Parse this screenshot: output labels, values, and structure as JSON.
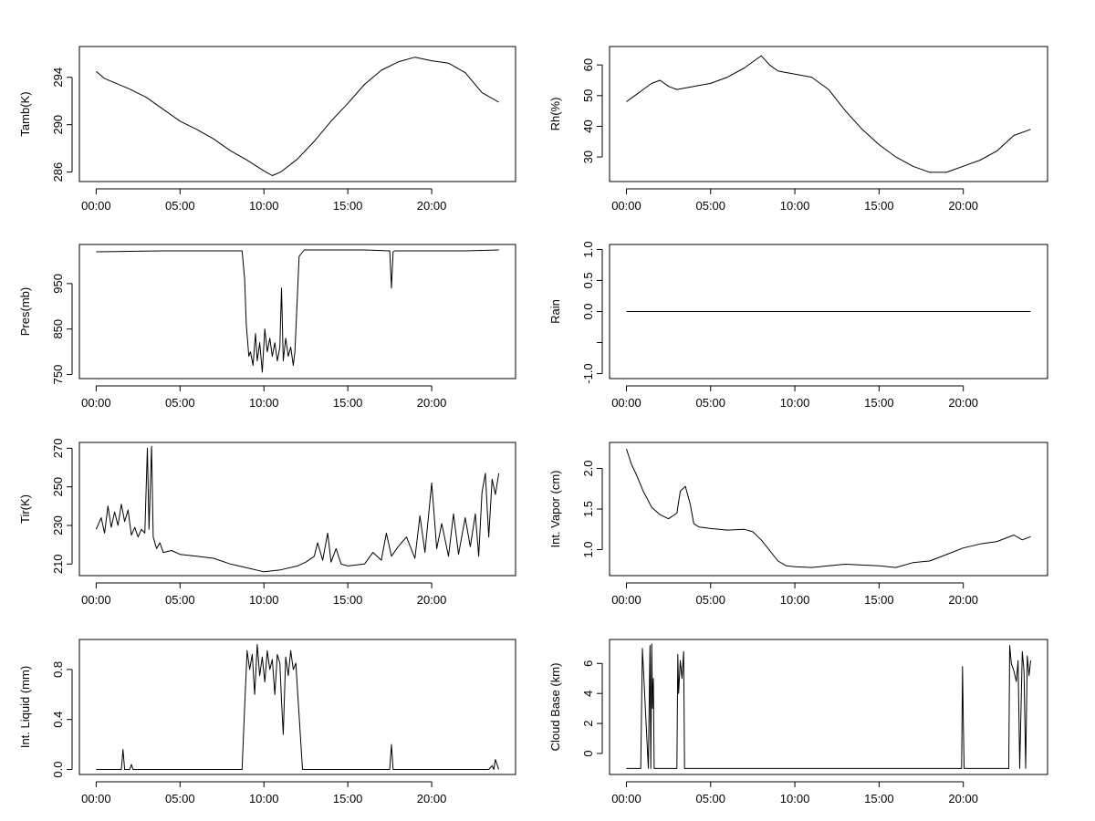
{
  "chart_data": [
    {
      "type": "line",
      "ylabel": "Tamb(K)",
      "xticks": [
        0,
        5,
        10,
        15,
        20
      ],
      "xtick_labels": [
        "00:00",
        "05:00",
        "10:00",
        "15:00",
        "20:00"
      ],
      "xlim": [
        -1,
        25
      ],
      "yticks": [
        286,
        290,
        294
      ],
      "ylim": [
        285.2,
        296.6
      ],
      "series": [
        {
          "x": [
            0,
            0.5,
            1,
            2,
            3,
            4,
            5,
            6,
            7,
            8,
            9,
            10,
            10.5,
            11,
            12,
            13,
            14,
            15,
            16,
            17,
            18,
            19,
            20,
            21,
            22,
            23,
            24
          ],
          "y": [
            294.5,
            293.9,
            293.6,
            293.0,
            292.3,
            291.3,
            290.3,
            289.6,
            288.8,
            287.8,
            287.0,
            286.1,
            285.7,
            286.0,
            287.1,
            288.6,
            290.3,
            291.8,
            293.4,
            294.6,
            295.3,
            295.7,
            295.4,
            295.2,
            294.4,
            292.7,
            291.9
          ]
        }
      ]
    },
    {
      "type": "line",
      "ylabel": "Rh(%)",
      "xticks": [
        0,
        5,
        10,
        15,
        20
      ],
      "xtick_labels": [
        "00:00",
        "05:00",
        "10:00",
        "15:00",
        "20:00"
      ],
      "xlim": [
        -1,
        25
      ],
      "yticks": [
        30,
        40,
        50,
        60
      ],
      "ylim": [
        22,
        66
      ],
      "series": [
        {
          "x": [
            0,
            0.5,
            1,
            1.5,
            2,
            2.5,
            3,
            4,
            5,
            6,
            7,
            8,
            8.5,
            9,
            10,
            11,
            12,
            13,
            14,
            15,
            16,
            17,
            18,
            19,
            20,
            21,
            22,
            23,
            24
          ],
          "y": [
            48,
            50,
            52,
            54,
            55,
            53,
            52,
            53,
            54,
            56,
            59,
            63,
            60,
            58,
            57,
            56,
            52,
            45,
            39,
            34,
            30,
            27,
            25,
            25,
            27,
            29,
            32,
            37,
            39
          ]
        }
      ]
    },
    {
      "type": "line",
      "ylabel": "Pres(mb)",
      "xticks": [
        0,
        5,
        10,
        15,
        20
      ],
      "xtick_labels": [
        "00:00",
        "05:00",
        "10:00",
        "15:00",
        "20:00"
      ],
      "xlim": [
        -1,
        25
      ],
      "yticks": [
        750,
        850,
        950
      ],
      "ylim": [
        741,
        1036
      ],
      "series": [
        {
          "x": [
            0,
            2,
            4,
            6,
            8,
            8.7,
            8.85,
            8.95,
            9.1,
            9.2,
            9.35,
            9.5,
            9.6,
            9.75,
            9.9,
            10.05,
            10.2,
            10.35,
            10.5,
            10.65,
            10.8,
            10.95,
            11.05,
            11.15,
            11.3,
            11.45,
            11.6,
            11.75,
            11.85,
            12.1,
            12.4,
            14,
            16,
            17.5,
            17.6,
            17.7,
            17.8,
            20,
            22,
            24
          ],
          "y": [
            1020,
            1021,
            1022,
            1022,
            1022,
            1022,
            960,
            860,
            790,
            800,
            770,
            840,
            780,
            820,
            755,
            850,
            800,
            830,
            790,
            820,
            780,
            810,
            940,
            780,
            830,
            790,
            810,
            770,
            800,
            1010,
            1024,
            1024,
            1024,
            1022,
            940,
            1020,
            1022,
            1022,
            1022,
            1024
          ]
        }
      ]
    },
    {
      "type": "line",
      "ylabel": "Rain",
      "xticks": [
        0,
        5,
        10,
        15,
        20
      ],
      "xtick_labels": [
        "00:00",
        "05:00",
        "10:00",
        "15:00",
        "20:00"
      ],
      "xlim": [
        -1,
        25
      ],
      "yticks": [
        -1.0,
        -0.5,
        0.0,
        0.5,
        1.0
      ],
      "ytick_labels": [
        "-1.0",
        "",
        "0.0",
        "0.5",
        "1.0"
      ],
      "ylim": [
        -1.08,
        1.08
      ],
      "series": [
        {
          "x": [
            0,
            24
          ],
          "y": [
            0,
            0
          ]
        }
      ]
    },
    {
      "type": "line",
      "ylabel": "Tir(K)",
      "xticks": [
        0,
        5,
        10,
        15,
        20
      ],
      "xtick_labels": [
        "00:00",
        "05:00",
        "10:00",
        "15:00",
        "20:00"
      ],
      "xlim": [
        -1,
        25
      ],
      "yticks": [
        210,
        230,
        250,
        270
      ],
      "ylim": [
        204,
        273
      ],
      "series": [
        {
          "x": [
            0,
            0.3,
            0.5,
            0.7,
            0.9,
            1.1,
            1.3,
            1.5,
            1.7,
            1.9,
            2.1,
            2.3,
            2.5,
            2.7,
            2.9,
            3.05,
            3.15,
            3.3,
            3.4,
            3.6,
            3.8,
            4,
            4.5,
            5,
            6,
            7,
            8,
            9,
            10,
            11,
            12,
            12.5,
            13,
            13.2,
            13.5,
            13.8,
            14,
            14.3,
            14.6,
            15,
            16,
            16.5,
            17,
            17.3,
            17.6,
            18,
            18.5,
            19,
            19.3,
            19.6,
            20,
            20.3,
            20.6,
            21,
            21.3,
            21.6,
            22,
            22.3,
            22.6,
            22.8,
            23,
            23.2,
            23.4,
            23.6,
            23.8,
            24
          ],
          "y": [
            228,
            234,
            226,
            240,
            229,
            237,
            230,
            241,
            232,
            238,
            225,
            229,
            224,
            228,
            226,
            270,
            228,
            271,
            224,
            218,
            221,
            216,
            217,
            215,
            214,
            213,
            210,
            208,
            206,
            207,
            209,
            211,
            214,
            221,
            212,
            226,
            211,
            218,
            210,
            209,
            210,
            216,
            212,
            226,
            214,
            219,
            224,
            213,
            235,
            216,
            252,
            218,
            231,
            214,
            236,
            215,
            234,
            219,
            236,
            214,
            247,
            257,
            224,
            254,
            246,
            257
          ]
        }
      ]
    },
    {
      "type": "line",
      "ylabel": "Int. Vapor (cm)",
      "xticks": [
        0,
        5,
        10,
        15,
        20
      ],
      "xtick_labels": [
        "00:00",
        "05:00",
        "10:00",
        "15:00",
        "20:00"
      ],
      "xlim": [
        -1,
        25
      ],
      "yticks": [
        1.0,
        1.5,
        2.0
      ],
      "ytick_labels": [
        "1.0",
        "1.5",
        "2.0"
      ],
      "ylim": [
        0.68,
        2.32
      ],
      "series": [
        {
          "x": [
            0,
            0.3,
            0.6,
            1,
            1.5,
            2,
            2.5,
            3,
            3.2,
            3.5,
            3.8,
            4,
            4.3,
            5,
            6,
            7,
            7.5,
            8,
            9,
            9.5,
            10,
            11,
            12,
            13,
            14,
            15,
            16,
            17,
            18,
            19,
            20,
            21,
            22,
            23,
            23.5,
            24
          ],
          "y": [
            2.24,
            2.05,
            1.92,
            1.72,
            1.52,
            1.43,
            1.38,
            1.45,
            1.72,
            1.78,
            1.55,
            1.32,
            1.28,
            1.26,
            1.24,
            1.25,
            1.22,
            1.12,
            0.86,
            0.8,
            0.79,
            0.78,
            0.8,
            0.82,
            0.81,
            0.8,
            0.78,
            0.84,
            0.86,
            0.94,
            1.02,
            1.07,
            1.1,
            1.18,
            1.12,
            1.16
          ]
        }
      ]
    },
    {
      "type": "line",
      "ylabel": "Int. Liquid (mm)",
      "xticks": [
        0,
        5,
        10,
        15,
        20
      ],
      "xtick_labels": [
        "00:00",
        "05:00",
        "10:00",
        "15:00",
        "20:00"
      ],
      "xlim": [
        -1,
        25
      ],
      "yticks": [
        0.0,
        0.4,
        0.8
      ],
      "ytick_labels": [
        "0.0",
        "0.4",
        "0.8"
      ],
      "ylim": [
        -0.04,
        1.04
      ],
      "series": [
        {
          "x": [
            0,
            1.5,
            1.6,
            1.7,
            2,
            2.1,
            2.2,
            8.7,
            8.85,
            9,
            9.15,
            9.3,
            9.45,
            9.6,
            9.75,
            9.9,
            10.05,
            10.2,
            10.35,
            10.5,
            10.65,
            10.8,
            10.95,
            11.05,
            11.15,
            11.3,
            11.45,
            11.6,
            11.75,
            11.9,
            12.3,
            17.5,
            17.6,
            17.7,
            23.4,
            23.6,
            23.7,
            23.8,
            24
          ],
          "y": [
            0,
            0,
            0.16,
            0,
            0,
            0.04,
            0,
            0,
            0.5,
            0.95,
            0.8,
            0.92,
            0.6,
            1.0,
            0.75,
            0.9,
            0.7,
            0.95,
            0.8,
            0.88,
            0.6,
            0.92,
            0.85,
            0.55,
            0.28,
            0.9,
            0.75,
            0.95,
            0.8,
            0.85,
            0,
            0,
            0.2,
            0,
            0,
            0.03,
            0,
            0.08,
            0
          ]
        }
      ]
    },
    {
      "type": "line",
      "ylabel": "Cloud Base (km)",
      "xticks": [
        0,
        5,
        10,
        15,
        20
      ],
      "xtick_labels": [
        "00:00",
        "05:00",
        "10:00",
        "15:00",
        "20:00"
      ],
      "xlim": [
        -1,
        25
      ],
      "yticks": [
        0,
        2,
        4,
        6
      ],
      "ylim": [
        -1.4,
        7.6
      ],
      "series": [
        {
          "x": [
            0,
            0.85,
            0.9,
            0.95,
            1.3,
            1.4,
            1.45,
            1.5,
            1.55,
            1.6,
            1.65,
            3.0,
            3.05,
            3.1,
            3.2,
            3.3,
            3.4,
            3.45,
            19.9,
            19.95,
            20.0,
            20.05,
            22.7,
            22.75,
            22.85,
            23.0,
            23.15,
            23.25,
            23.35,
            23.5,
            23.6,
            23.7,
            23.8,
            23.9,
            24.0
          ],
          "y": [
            -1,
            -1,
            3,
            7,
            -1,
            7.2,
            -1,
            7.3,
            3,
            5,
            -1,
            -1,
            6.6,
            4,
            6.2,
            5,
            6.8,
            -1,
            -1,
            5.8,
            2,
            -1,
            -1,
            7.2,
            6,
            5.5,
            4.8,
            6.2,
            -1,
            6.8,
            5.5,
            -1,
            6.5,
            5.2,
            6.2
          ]
        }
      ]
    }
  ]
}
